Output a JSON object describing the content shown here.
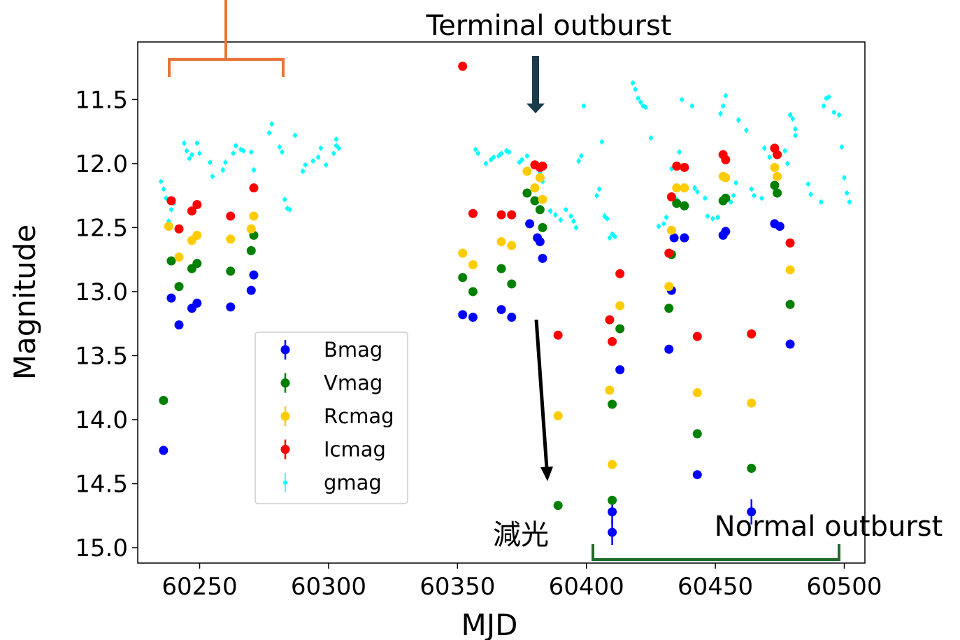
{
  "chart_data": {
    "type": "scatter",
    "xlabel": "MJD",
    "ylabel": "Magnitude",
    "xlim": [
      60226,
      60508
    ],
    "ylim": [
      15.12,
      11.05
    ],
    "y_inverted": true,
    "xticks": [
      60250,
      60300,
      60350,
      60400,
      60450,
      60500
    ],
    "yticks": [
      11.5,
      12.0,
      12.5,
      13.0,
      13.5,
      14.0,
      14.5,
      15.0
    ],
    "ytick_labels": [
      "11.5",
      "12.0",
      "12.5",
      "13.0",
      "13.5",
      "14.0",
      "14.5",
      "15.0"
    ],
    "grid": false,
    "legend_position": "lower-left (inside axes)",
    "series": [
      {
        "name": "Bmag",
        "color": "#0000ff",
        "x": [
          60236,
          60239,
          60242,
          60247,
          60249,
          60262,
          60270,
          60271,
          60352,
          60356,
          60367,
          60371,
          60378,
          60381,
          60382,
          60383,
          60410,
          60410,
          60413,
          60432,
          60433,
          60434,
          60438,
          60443,
          60453,
          60454,
          60464,
          60473,
          60475,
          60479
        ],
        "y": [
          14.24,
          13.05,
          13.26,
          13.13,
          13.09,
          13.12,
          12.99,
          12.87,
          13.18,
          13.2,
          13.14,
          13.2,
          12.47,
          12.58,
          12.61,
          12.74,
          14.72,
          14.88,
          13.61,
          13.45,
          12.99,
          12.58,
          12.58,
          14.43,
          12.56,
          12.53,
          14.72,
          12.47,
          12.49,
          13.41
        ]
      },
      {
        "name": "Vmag",
        "color": "#008000",
        "x": [
          60236,
          60239,
          60242,
          60247,
          60249,
          60262,
          60270,
          60271,
          60352,
          60356,
          60367,
          60371,
          60377,
          60380,
          60382,
          60383,
          60389,
          60410,
          60410,
          60413,
          60432,
          60433,
          60435,
          60438,
          60443,
          60453,
          60454,
          60464,
          60473,
          60474,
          60479
        ],
        "y": [
          13.85,
          12.76,
          12.96,
          12.82,
          12.78,
          12.84,
          12.68,
          12.56,
          12.89,
          13.0,
          12.82,
          12.94,
          12.23,
          12.29,
          12.36,
          12.5,
          14.67,
          13.88,
          14.63,
          13.29,
          13.13,
          12.71,
          12.31,
          12.33,
          14.11,
          12.29,
          12.27,
          14.38,
          12.17,
          12.23,
          13.1
        ]
      },
      {
        "name": "Rcmag",
        "color": "#ffcc00",
        "x": [
          60238,
          60242,
          60247,
          60249,
          60262,
          60270,
          60271,
          60352,
          60356,
          60367,
          60371,
          60377,
          60380,
          60382,
          60383,
          60389,
          60409,
          60410,
          60413,
          60432,
          60433,
          60435,
          60438,
          60443,
          60453,
          60454,
          60464,
          60473,
          60474,
          60479
        ],
        "y": [
          12.49,
          12.73,
          12.6,
          12.56,
          12.59,
          12.51,
          12.41,
          12.7,
          12.79,
          12.61,
          12.64,
          12.06,
          12.19,
          12.11,
          12.28,
          13.97,
          13.77,
          14.35,
          13.11,
          12.96,
          12.52,
          12.19,
          12.19,
          13.79,
          12.1,
          12.11,
          13.87,
          12.03,
          12.1,
          12.83
        ]
      },
      {
        "name": "Icmag",
        "color": "#ff0000",
        "x": [
          60239,
          60242,
          60247,
          60249,
          60262,
          60271,
          60352,
          60356,
          60367,
          60371,
          60380,
          60382,
          60383,
          60389,
          60409,
          60410,
          60413,
          60432,
          60433,
          60435,
          60438,
          60443,
          60453,
          60454,
          60464,
          60473,
          60474,
          60479
        ],
        "y": [
          12.29,
          12.51,
          12.37,
          12.32,
          12.41,
          12.19,
          11.24,
          12.39,
          12.4,
          12.4,
          12.01,
          12.03,
          12.02,
          13.34,
          13.22,
          13.39,
          12.86,
          12.7,
          12.26,
          12.02,
          12.03,
          13.35,
          11.93,
          11.97,
          13.33,
          11.88,
          11.93,
          12.62
        ]
      },
      {
        "name": "gmag",
        "color": "#00ffff",
        "x": [
          60235,
          60236,
          60237,
          60238,
          60239,
          60240,
          60244,
          60245,
          60246,
          60247,
          60249,
          60250,
          60254,
          60255,
          60259,
          60260,
          60263,
          60264,
          60266,
          60267,
          60270,
          60271,
          60277,
          60278,
          60281,
          60282,
          60283,
          60284,
          60285,
          60287,
          60290,
          60291,
          60294,
          60296,
          60297,
          60299,
          60302,
          60303,
          60303,
          60304,
          60357,
          60358,
          60361,
          60363,
          60364,
          60366,
          60367,
          60369,
          60370,
          60374,
          60375,
          60377,
          60382,
          60383,
          60386,
          60388,
          60390,
          60392,
          60394,
          60395,
          60396,
          60397,
          60398,
          60399,
          60404,
          60405,
          60406,
          60407,
          60408,
          60409,
          60410,
          60411,
          60418,
          60419,
          60420,
          60421,
          60422,
          60423,
          60425,
          60428,
          60430,
          60431,
          60433,
          60435,
          60436,
          60437,
          60441,
          60442,
          60443,
          60446,
          60447,
          60449,
          60451,
          60452,
          60453,
          60454,
          60456,
          60457,
          60458,
          60459,
          60462,
          60464,
          60465,
          60468,
          60469,
          60471,
          60477,
          60478,
          60479,
          60480,
          60481,
          60481,
          60486,
          60487,
          60491,
          60492,
          60493,
          60494,
          60496,
          60498,
          60499,
          60500,
          60501,
          60502
        ],
        "y": [
          12.14,
          12.2,
          12.27,
          12.45,
          12.36,
          12.31,
          11.84,
          11.9,
          11.96,
          11.93,
          11.84,
          11.92,
          11.99,
          12.1,
          12.05,
          11.99,
          11.92,
          11.86,
          11.89,
          11.9,
          11.91,
          12.05,
          11.76,
          11.69,
          11.87,
          11.91,
          12.28,
          12.35,
          12.36,
          11.78,
          12.06,
          12.01,
          11.98,
          11.95,
          11.88,
          12.01,
          11.92,
          11.86,
          11.81,
          11.88,
          11.89,
          11.92,
          12.0,
          11.97,
          11.95,
          11.94,
          11.92,
          11.9,
          11.91,
          11.99,
          11.97,
          11.94,
          12.07,
          12.14,
          12.37,
          12.4,
          12.44,
          12.36,
          12.41,
          12.45,
          12.5,
          11.98,
          11.94,
          11.55,
          12.25,
          12.2,
          11.83,
          12.41,
          12.43,
          12.58,
          12.55,
          12.57,
          11.37,
          11.42,
          11.49,
          11.52,
          11.55,
          11.56,
          11.8,
          12.49,
          12.47,
          12.42,
          12.04,
          12.28,
          11.91,
          11.5,
          11.55,
          12.19,
          12.22,
          12.27,
          12.41,
          12.43,
          12.42,
          11.61,
          11.55,
          11.47,
          12.3,
          12.25,
          12.15,
          11.66,
          11.74,
          12.2,
          12.25,
          12.27,
          11.88,
          11.95,
          11.9,
          12.0,
          11.62,
          11.65,
          11.73,
          11.78,
          12.16,
          12.24,
          12.3,
          11.55,
          11.49,
          11.48,
          11.6,
          11.62,
          11.87,
          12.11,
          12.23,
          12.3
        ]
      }
    ]
  },
  "annotations": {
    "terminal_outburst": "Terminal outburst",
    "dimming": "減光",
    "normal_outburst": "Normal outburst"
  },
  "colors": {
    "bracket_orange": "#e8763a",
    "bracket_green": "#1f6b2a",
    "arrow_dark": "#1a3a4a"
  }
}
